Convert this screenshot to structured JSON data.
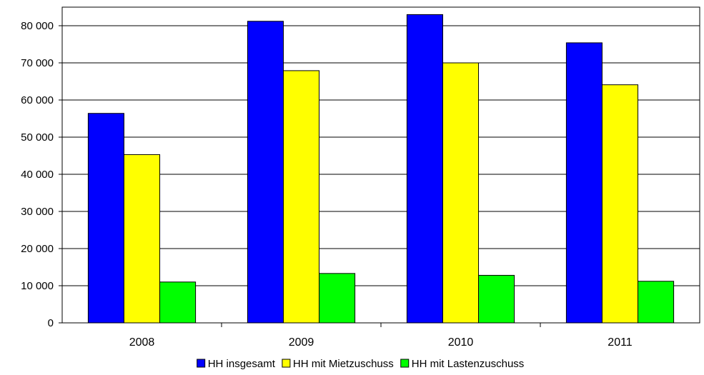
{
  "chart_data": {
    "type": "bar",
    "categories": [
      "2008",
      "2009",
      "2010",
      "2011"
    ],
    "series": [
      {
        "name": "HH insgesamt",
        "color": "#0000ff",
        "values": [
          56400,
          81200,
          83000,
          75400
        ]
      },
      {
        "name": "HH mit Mietzuschuss",
        "color": "#ffff00",
        "values": [
          45300,
          67900,
          70000,
          64100
        ]
      },
      {
        "name": "HH mit Lastenzuschuss",
        "color": "#00ff00",
        "values": [
          11000,
          13300,
          12800,
          11200
        ]
      }
    ],
    "ylim": [
      0,
      85000
    ],
    "yticks": [
      0,
      10000,
      20000,
      30000,
      40000,
      50000,
      60000,
      70000,
      80000
    ],
    "ytick_labels": [
      "0",
      "10 000",
      "20 000",
      "30 000",
      "40 000",
      "50 000",
      "60 000",
      "70 000",
      "80 000"
    ],
    "grid": true,
    "legend_position": "bottom"
  }
}
